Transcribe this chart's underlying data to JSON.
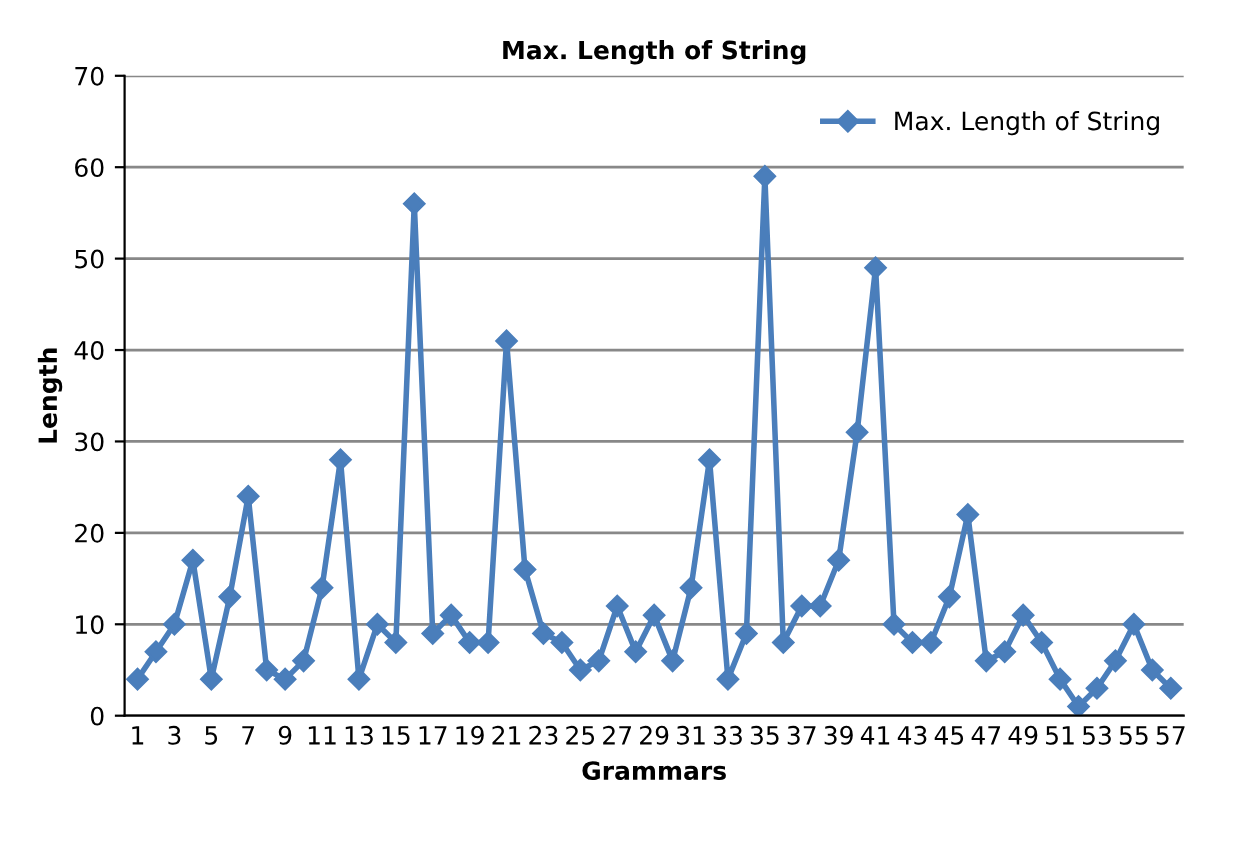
{
  "chart_data": {
    "type": "line",
    "title": "Max. Length of String",
    "xlabel": "Grammars",
    "ylabel": "Length",
    "categories": [
      "1",
      null,
      "3",
      null,
      "5",
      null,
      "7",
      null,
      "9",
      null,
      "11",
      null,
      "13",
      null,
      "15",
      null,
      "17",
      null,
      "19",
      null,
      "21",
      null,
      "23",
      null,
      "25",
      null,
      "27",
      null,
      "29",
      null,
      "31",
      null,
      "33",
      null,
      "35",
      null,
      "37",
      null,
      "39",
      null,
      "41",
      null,
      "43",
      null,
      "45",
      null,
      "47",
      null,
      "49",
      null,
      "51",
      null,
      "53",
      null,
      "55",
      null,
      "57"
    ],
    "series": [
      {
        "name": "Max. Length of String",
        "color": "#4a7ebb",
        "values": [
          4,
          7,
          10,
          17,
          4,
          13,
          24,
          5,
          4,
          6,
          14,
          28,
          4,
          10,
          8,
          56,
          9,
          11,
          8,
          8,
          41,
          16,
          9,
          8,
          5,
          6,
          12,
          7,
          11,
          6,
          14,
          28,
          4,
          9,
          59,
          8,
          12,
          12,
          17,
          31,
          49,
          10,
          8,
          8,
          13,
          22,
          6,
          7,
          11,
          8,
          4,
          1,
          3,
          6,
          10,
          5,
          3
        ]
      }
    ],
    "ylim": [
      0,
      70
    ],
    "yticks": [
      0,
      10,
      20,
      30,
      40,
      50,
      60,
      70
    ],
    "grid": "y",
    "legend": "top right",
    "marker": "diamond",
    "line_style": "solid"
  }
}
